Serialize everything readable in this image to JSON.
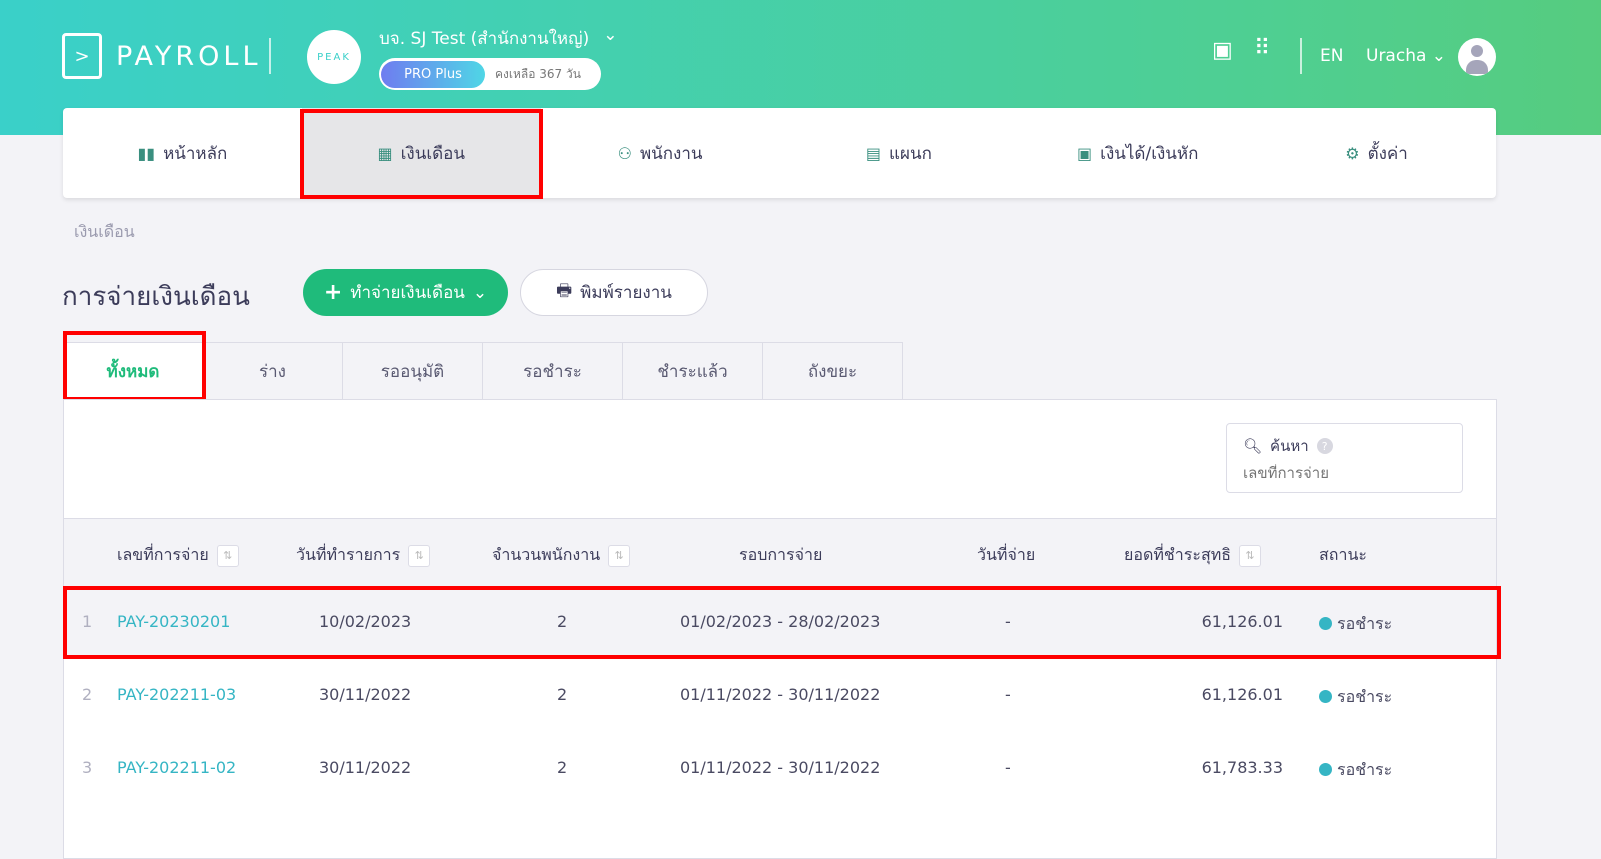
{
  "header": {
    "logo_text": "PAYROLL",
    "org_logo": "PEAK",
    "company": "บจ. SJ Test (สำนักงานใหญ่)",
    "plan": "PRO Plus",
    "remaining": "คงเหลือ 367 วัน",
    "language": "EN",
    "user": "Uracha",
    "icons": [
      "help-book-icon",
      "apps-grid-icon",
      "user-avatar-icon"
    ]
  },
  "nav": [
    {
      "label": "หน้าหลัก",
      "icon": "chart-icon"
    },
    {
      "label": "เงินเดือน",
      "icon": "calendar-icon",
      "active": true
    },
    {
      "label": "พนักงาน",
      "icon": "people-icon"
    },
    {
      "label": "แผนก",
      "icon": "id-card-icon"
    },
    {
      "label": "เงินได้/เงินหัก",
      "icon": "money-icon"
    },
    {
      "label": "ตั้งค่า",
      "icon": "gear-icon"
    }
  ],
  "breadcrumb": "เงินเดือน",
  "page": {
    "title": "การจ่ายเงินเดือน",
    "pay_button": "ทำจ่ายเงินเดือน",
    "print_button": "พิมพ์รายงาน"
  },
  "tabs": [
    {
      "label": "ทั้งหมด",
      "active": true
    },
    {
      "label": "ร่าง"
    },
    {
      "label": "รออนุมัติ"
    },
    {
      "label": "รอชำระ"
    },
    {
      "label": "ชำระแล้ว"
    },
    {
      "label": "ถังขยะ"
    }
  ],
  "search": {
    "label": "ค้นหา",
    "placeholder": "เลขที่การจ่าย"
  },
  "table": {
    "headers": [
      "เลขที่การจ่าย",
      "วันที่ทำรายการ",
      "จำนวนพนักงาน",
      "รอบการจ่าย",
      "วันที่จ่าย",
      "ยอดที่ชำระสุทธิ",
      "สถานะ"
    ],
    "rows": [
      {
        "n": "1",
        "id": "PAY-20230201",
        "date": "10/02/2023",
        "count": "2",
        "period": "01/02/2023 - 28/02/2023",
        "paid": "-",
        "amount": "61,126.01",
        "status": "รอชำระ"
      },
      {
        "n": "2",
        "id": "PAY-202211-03",
        "date": "30/11/2022",
        "count": "2",
        "period": "01/11/2022 - 30/11/2022",
        "paid": "-",
        "amount": "61,126.01",
        "status": "รอชำระ"
      },
      {
        "n": "3",
        "id": "PAY-202211-02",
        "date": "30/11/2022",
        "count": "2",
        "period": "01/11/2022 - 30/11/2022",
        "paid": "-",
        "amount": "61,783.33",
        "status": "รอชำระ"
      }
    ]
  },
  "colors": {
    "accent": "#1fbb7b",
    "link": "#35b5c4",
    "status_pending": "#35b5c4",
    "highlight": "#ff0000"
  }
}
